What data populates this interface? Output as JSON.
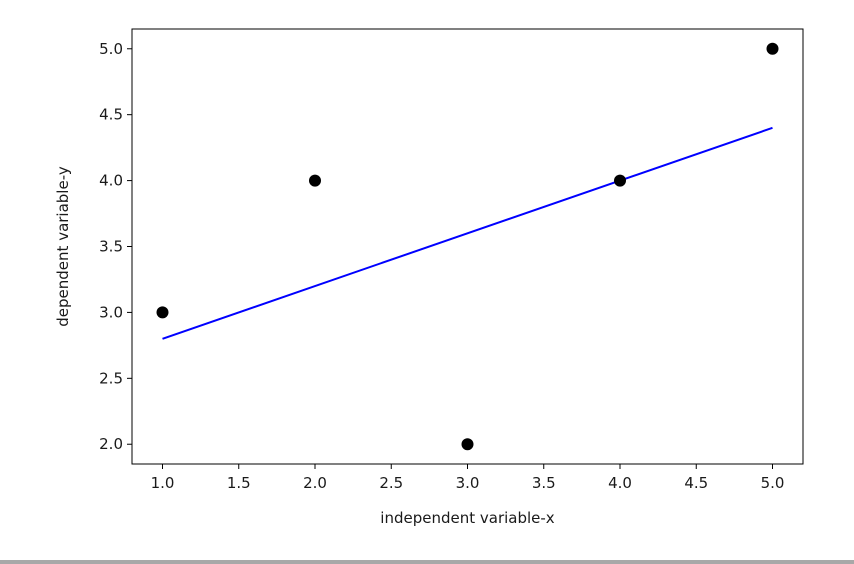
{
  "chart_data": {
    "type": "scatter",
    "xlabel": "independent variable-x",
    "ylabel": "dependent variable-y",
    "xlim": [
      0.8,
      5.2
    ],
    "ylim": [
      1.85,
      5.15
    ],
    "x_ticks": [
      1.0,
      1.5,
      2.0,
      2.5,
      3.0,
      3.5,
      4.0,
      4.5,
      5.0
    ],
    "x_tick_labels": [
      "1.0",
      "1.5",
      "2.0",
      "2.5",
      "3.0",
      "3.5",
      "4.0",
      "4.5",
      "5.0"
    ],
    "y_ticks": [
      2.0,
      2.5,
      3.0,
      3.5,
      4.0,
      4.5,
      5.0
    ],
    "y_tick_labels": [
      "2.0",
      "2.5",
      "3.0",
      "3.5",
      "4.0",
      "4.5",
      "5.0"
    ],
    "grid": false,
    "series": [
      {
        "type": "scatter",
        "color": "#000000",
        "x": [
          1,
          2,
          3,
          4,
          5
        ],
        "y": [
          3,
          4,
          2,
          4,
          5
        ]
      },
      {
        "type": "line",
        "color": "#0000ff",
        "x": [
          1,
          5
        ],
        "y": [
          2.8,
          4.4
        ]
      }
    ]
  }
}
